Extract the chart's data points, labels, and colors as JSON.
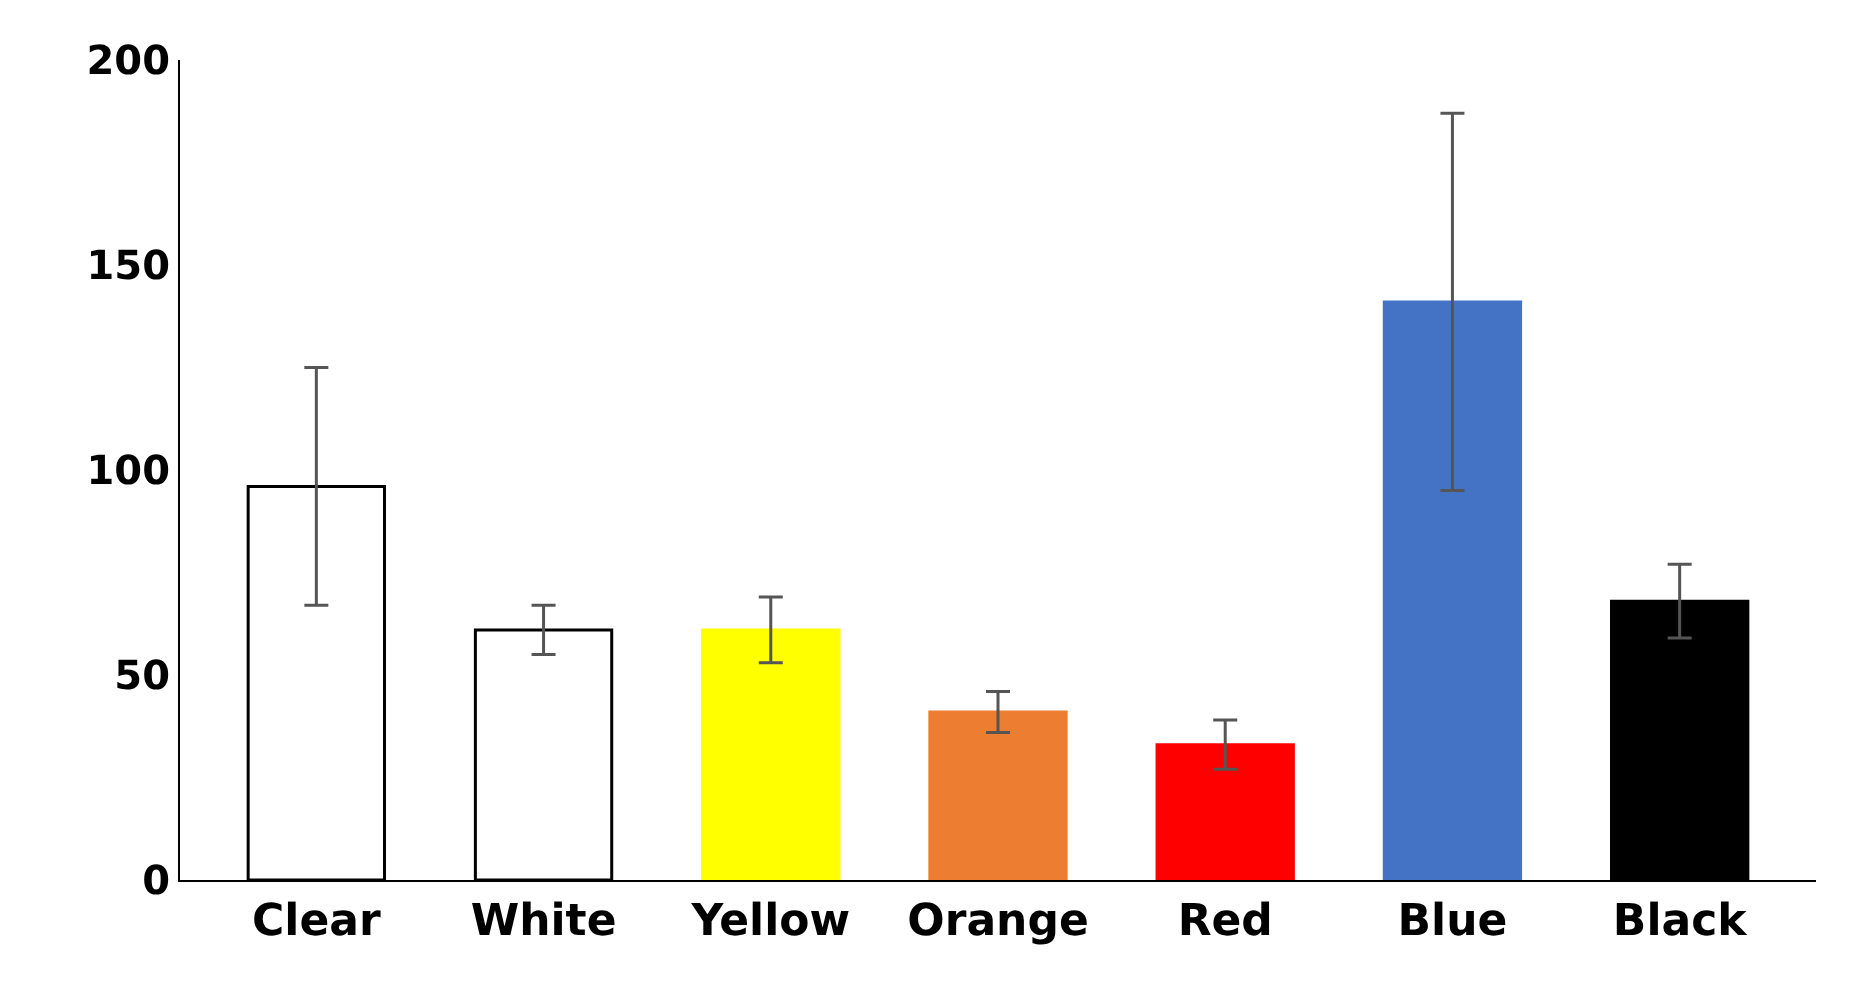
{
  "chart_data": {
    "type": "bar",
    "categories": [
      "Clear",
      "White",
      "Yellow",
      "Orange",
      "Red",
      "Blue",
      "Black"
    ],
    "values": [
      96,
      61,
      61,
      41,
      33,
      141,
      68
    ],
    "errors": [
      29,
      6,
      8,
      5,
      6,
      46,
      9
    ],
    "colors": [
      "#ffffff",
      "#ffffff",
      "#ffff00",
      "#ed7d31",
      "#ff0000",
      "#4472c4",
      "#000000"
    ],
    "ylim": [
      0,
      200
    ],
    "yticks": [
      0,
      50,
      100,
      150,
      200
    ]
  }
}
